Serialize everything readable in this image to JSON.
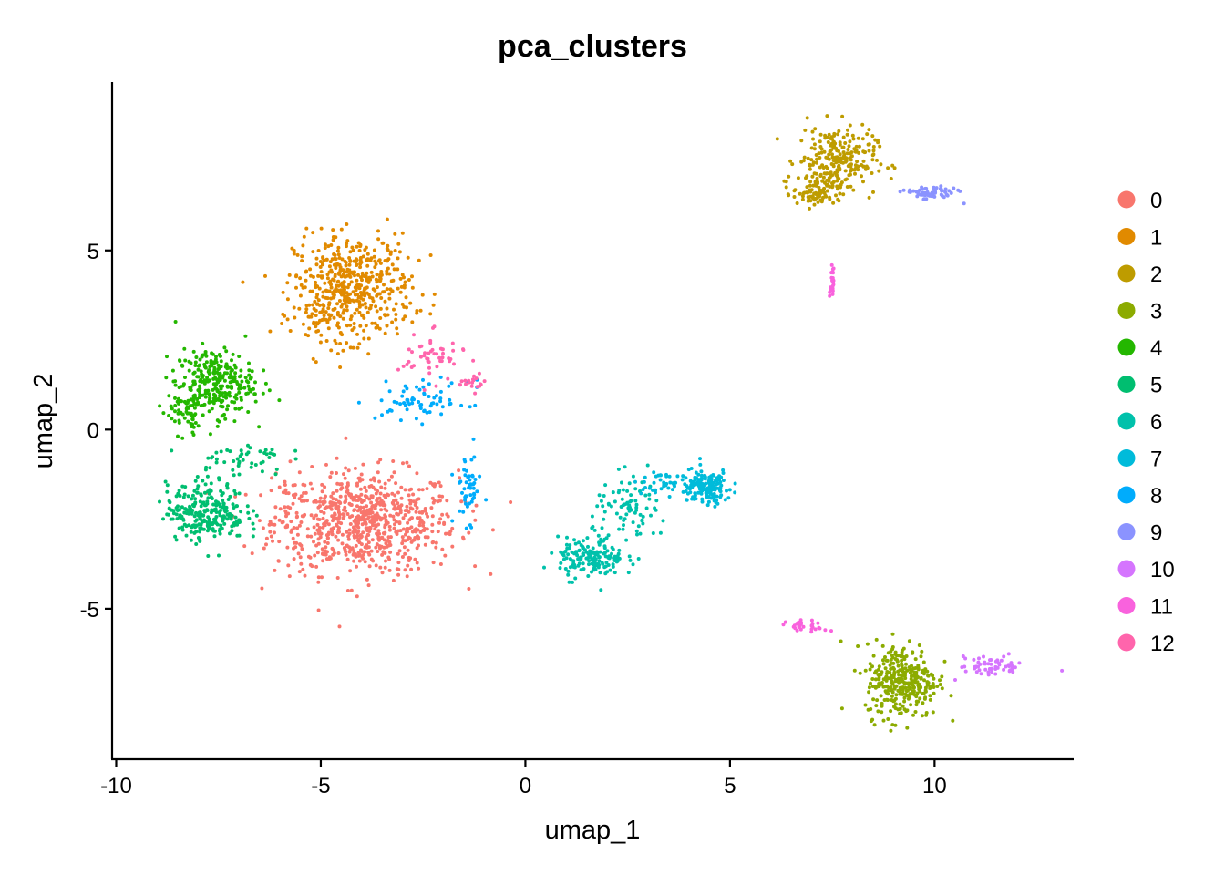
{
  "chart_data": {
    "type": "scatter",
    "title": "pca_clusters",
    "xlabel": "umap_1",
    "ylabel": "umap_2",
    "xlim": [
      -10.1,
      13.4
    ],
    "ylim": [
      -9.2,
      9.7
    ],
    "xticks": [
      -10,
      -5,
      0,
      5,
      10
    ],
    "xtick_labels": [
      "-10",
      "-5",
      "0",
      "5",
      "10"
    ],
    "yticks": [
      -5,
      0,
      5
    ],
    "ytick_labels": [
      "-5",
      "0",
      "5"
    ],
    "grid": false,
    "legend_position": "right",
    "series": [
      {
        "name": "0",
        "color": "#F8766D",
        "clusters": [
          {
            "cx": -3.9,
            "cy": -2.6,
            "sx": 1.4,
            "sy": 0.9,
            "n": 750
          },
          {
            "cx": -5.9,
            "cy": -2.2,
            "sx": 0.3,
            "sy": 0.7,
            "n": 30
          }
        ]
      },
      {
        "name": "1",
        "color": "#E18A00",
        "clusters": [
          {
            "cx": -4.2,
            "cy": 4.0,
            "sx": 0.9,
            "sy": 0.9,
            "n": 460
          },
          {
            "cx": -4.9,
            "cy": 3.2,
            "sx": 0.5,
            "sy": 0.5,
            "n": 60
          }
        ]
      },
      {
        "name": "2",
        "color": "#BE9C00",
        "clusters": [
          {
            "cx": 7.6,
            "cy": 7.5,
            "sx": 0.6,
            "sy": 0.6,
            "n": 250
          },
          {
            "cx": 7.1,
            "cy": 6.6,
            "sx": 0.35,
            "sy": 0.25,
            "n": 70
          }
        ]
      },
      {
        "name": "3",
        "color": "#8CAB00",
        "clusters": [
          {
            "cx": 9.2,
            "cy": -7.0,
            "sx": 0.55,
            "sy": 0.65,
            "n": 330
          }
        ]
      },
      {
        "name": "4",
        "color": "#24B700",
        "clusters": [
          {
            "cx": -7.6,
            "cy": 1.3,
            "sx": 0.6,
            "sy": 0.6,
            "n": 280
          },
          {
            "cx": -8.3,
            "cy": 0.5,
            "sx": 0.3,
            "sy": 0.4,
            "n": 60
          }
        ]
      },
      {
        "name": "5",
        "color": "#00BE70",
        "clusters": [
          {
            "cx": -7.8,
            "cy": -2.3,
            "sx": 0.6,
            "sy": 0.5,
            "n": 270
          },
          {
            "cx": -7.0,
            "cy": -0.8,
            "sx": 0.7,
            "sy": 0.3,
            "n": 50
          }
        ]
      },
      {
        "name": "6",
        "color": "#00C1AB",
        "clusters": [
          {
            "cx": 1.6,
            "cy": -3.6,
            "sx": 0.5,
            "sy": 0.35,
            "n": 160
          },
          {
            "cx": 2.6,
            "cy": -2.3,
            "sx": 0.6,
            "sy": 0.6,
            "n": 90
          }
        ]
      },
      {
        "name": "7",
        "color": "#00BBDA",
        "clusters": [
          {
            "cx": 4.4,
            "cy": -1.6,
            "sx": 0.4,
            "sy": 0.3,
            "n": 160
          },
          {
            "cx": 3.3,
            "cy": -1.5,
            "sx": 0.4,
            "sy": 0.15,
            "n": 40
          }
        ]
      },
      {
        "name": "8",
        "color": "#00ACFC",
        "clusters": [
          {
            "cx": -2.5,
            "cy": 0.8,
            "sx": 0.7,
            "sy": 0.35,
            "n": 70
          },
          {
            "cx": -1.4,
            "cy": -1.6,
            "sx": 0.2,
            "sy": 0.6,
            "n": 50
          }
        ]
      },
      {
        "name": "9",
        "color": "#8B93FF",
        "clusters": [
          {
            "cx": 9.9,
            "cy": 6.6,
            "sx": 0.4,
            "sy": 0.12,
            "n": 70
          }
        ]
      },
      {
        "name": "10",
        "color": "#D575FE",
        "clusters": [
          {
            "cx": 11.4,
            "cy": -6.6,
            "sx": 0.5,
            "sy": 0.18,
            "n": 60
          }
        ]
      },
      {
        "name": "11",
        "color": "#F962DD",
        "clusters": [
          {
            "cx": 6.9,
            "cy": -5.5,
            "sx": 0.3,
            "sy": 0.1,
            "n": 30
          },
          {
            "cx": 7.5,
            "cy": 4.2,
            "sx": 0.03,
            "sy": 0.5,
            "n": 25
          }
        ]
      },
      {
        "name": "12",
        "color": "#FF65AC",
        "clusters": [
          {
            "cx": -2.3,
            "cy": 2.0,
            "sx": 0.5,
            "sy": 0.4,
            "n": 50
          },
          {
            "cx": -1.3,
            "cy": 1.3,
            "sx": 0.2,
            "sy": 0.15,
            "n": 20
          }
        ]
      }
    ]
  }
}
